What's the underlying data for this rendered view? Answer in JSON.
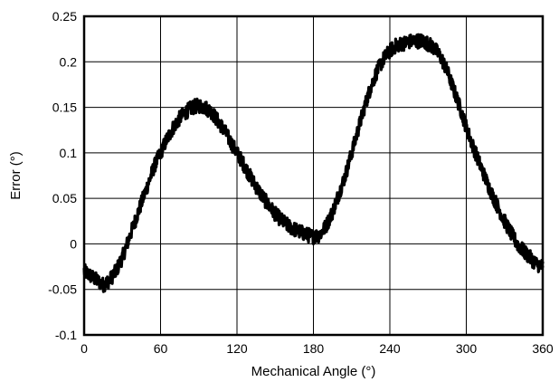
{
  "chart_data": {
    "type": "line",
    "title": "",
    "xlabel": "Mechanical Angle (°)",
    "ylabel": "Error (°)",
    "xlim": [
      0,
      360
    ],
    "ylim": [
      -0.1,
      0.25
    ],
    "xticks": [
      0,
      60,
      120,
      180,
      240,
      300,
      360
    ],
    "xtick_labels": [
      "0",
      "60",
      "120",
      "180",
      "240",
      "300",
      "360"
    ],
    "yticks": [
      -0.1,
      -0.05,
      0,
      0.05,
      0.1,
      0.15,
      0.2,
      0.25
    ],
    "ytick_labels": [
      "-0.1",
      "-0.05",
      "0",
      "0.05",
      "0.1",
      "0.15",
      "0.2",
      "0.25"
    ],
    "grid": true,
    "legend": "none",
    "series": [
      {
        "color": "#000000",
        "noise_amplitude": 0.008,
        "x": [
          0,
          5,
          10,
          15,
          20,
          25,
          30,
          35,
          40,
          45,
          50,
          55,
          60,
          65,
          70,
          75,
          80,
          85,
          90,
          95,
          100,
          105,
          110,
          115,
          120,
          125,
          130,
          135,
          140,
          145,
          150,
          155,
          160,
          165,
          170,
          175,
          180,
          185,
          190,
          195,
          200,
          205,
          210,
          215,
          220,
          225,
          230,
          235,
          240,
          245,
          250,
          255,
          260,
          265,
          270,
          275,
          280,
          285,
          290,
          295,
          300,
          305,
          310,
          315,
          320,
          325,
          330,
          335,
          340,
          345,
          350,
          355,
          360
        ],
        "y": [
          -0.03,
          -0.035,
          -0.04,
          -0.045,
          -0.04,
          -0.03,
          -0.015,
          0.005,
          0.025,
          0.045,
          0.065,
          0.085,
          0.1,
          0.115,
          0.128,
          0.138,
          0.145,
          0.15,
          0.152,
          0.15,
          0.145,
          0.135,
          0.125,
          0.112,
          0.1,
          0.088,
          0.075,
          0.063,
          0.052,
          0.042,
          0.033,
          0.026,
          0.02,
          0.016,
          0.013,
          0.01,
          0.008,
          0.01,
          0.02,
          0.035,
          0.055,
          0.075,
          0.1,
          0.125,
          0.15,
          0.172,
          0.19,
          0.203,
          0.212,
          0.218,
          0.22,
          0.222,
          0.223,
          0.223,
          0.22,
          0.215,
          0.205,
          0.19,
          0.17,
          0.15,
          0.128,
          0.108,
          0.09,
          0.072,
          0.055,
          0.04,
          0.025,
          0.012,
          0.0,
          -0.008,
          -0.015,
          -0.022,
          -0.025
        ]
      }
    ]
  }
}
